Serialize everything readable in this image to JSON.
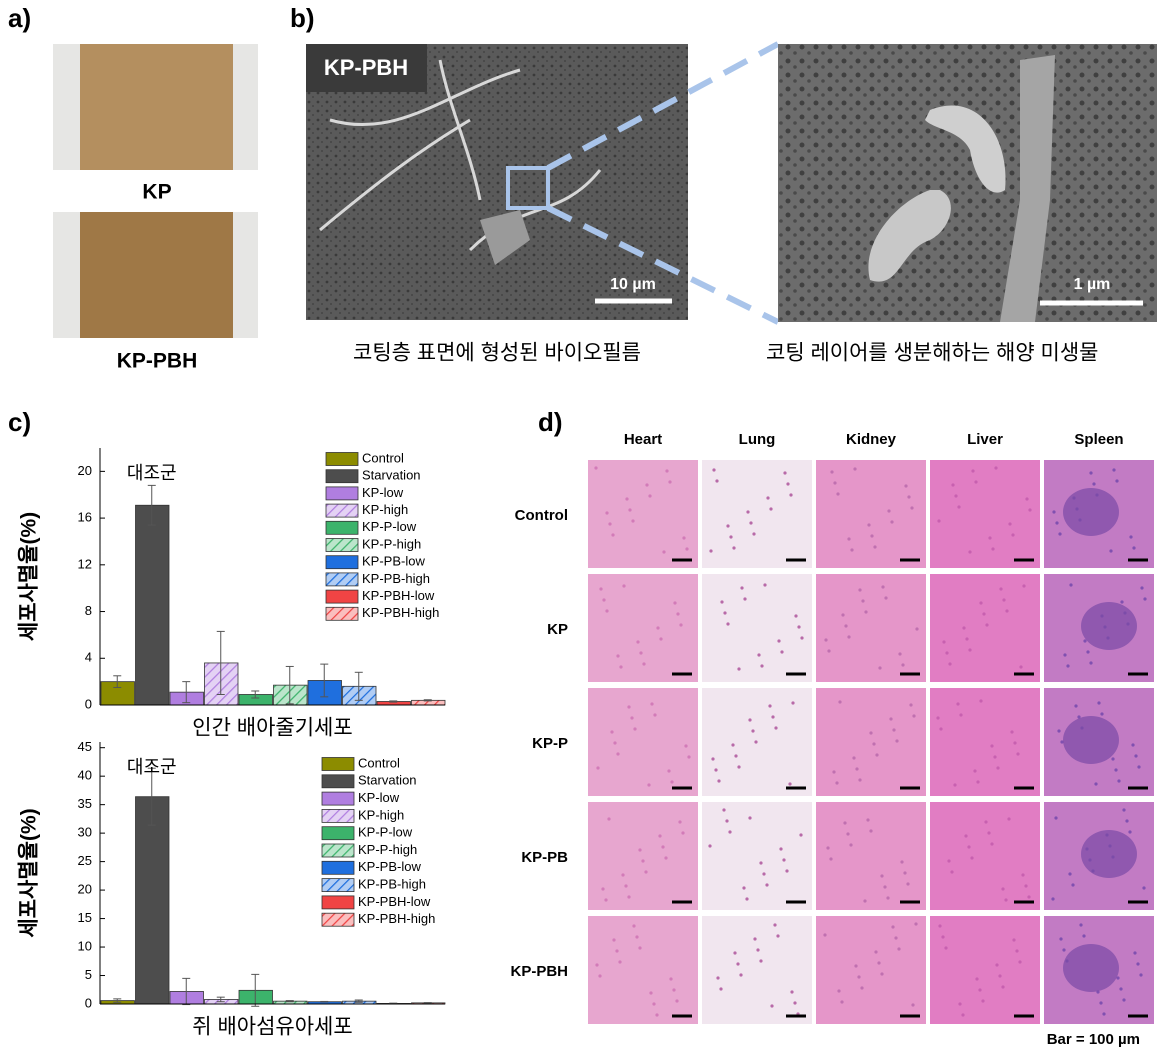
{
  "panel_labels": [
    "a)",
    "b)",
    "c)",
    "d)"
  ],
  "panel_a": {
    "samples": [
      "KP",
      "KP-PBH"
    ]
  },
  "panel_b": {
    "image_label": "KP-PBH",
    "scale_bars": [
      "10 µm",
      "1 µm"
    ],
    "captions": [
      "코팅층 표면에 형성된 바이오필름",
      "코팅 레이어를 생분해하는 해양 미생물"
    ]
  },
  "chart_data": [
    {
      "type": "bar",
      "annotation": "대조군",
      "x_label": "인간 배아줄기세포",
      "y_label": "세포사멸율(%)",
      "ylim": [
        0,
        22
      ],
      "yticks": [
        0,
        4,
        8,
        12,
        16,
        20
      ],
      "legend": "upper right",
      "series": [
        {
          "name": "Control",
          "color": "#8c8c00",
          "hatch": false,
          "values": [
            2.0
          ],
          "errors": [
            0.5
          ]
        },
        {
          "name": "Starvation",
          "color": "#4d4d4d",
          "hatch": false,
          "values": [
            17.1
          ],
          "errors": [
            1.7
          ]
        },
        {
          "name": "KP-low",
          "color": "#b07ee0",
          "hatch": false,
          "values": [
            1.1
          ],
          "errors": [
            0.9
          ]
        },
        {
          "name": "KP-high",
          "color": "#b07ee0",
          "hatch": true,
          "values": [
            3.6
          ],
          "errors": [
            2.7
          ]
        },
        {
          "name": "KP-P-low",
          "color": "#3cb36b",
          "hatch": false,
          "values": [
            0.9
          ],
          "errors": [
            0.3
          ]
        },
        {
          "name": "KP-P-high",
          "color": "#3cb36b",
          "hatch": true,
          "values": [
            1.7
          ],
          "errors": [
            1.6
          ]
        },
        {
          "name": "KP-PB-low",
          "color": "#1f6fde",
          "hatch": false,
          "values": [
            2.1
          ],
          "errors": [
            1.4
          ]
        },
        {
          "name": "KP-PB-high",
          "color": "#1f6fde",
          "hatch": true,
          "values": [
            1.6
          ],
          "errors": [
            1.2
          ]
        },
        {
          "name": "KP-PBH-low",
          "color": "#f04444",
          "hatch": false,
          "values": [
            0.3
          ],
          "errors": [
            0.05
          ]
        },
        {
          "name": "KP-PBH-high",
          "color": "#f04444",
          "hatch": true,
          "values": [
            0.4
          ],
          "errors": [
            0.05
          ]
        }
      ]
    },
    {
      "type": "bar",
      "annotation": "대조군",
      "x_label": "쥐 배아섬유아세포",
      "y_label": "세포사멸율(%)",
      "ylim": [
        0,
        46
      ],
      "yticks": [
        0,
        5,
        10,
        15,
        20,
        25,
        30,
        35,
        40,
        45
      ],
      "legend": "upper right",
      "series": [
        {
          "name": "Control",
          "color": "#8c8c00",
          "hatch": false,
          "values": [
            0.6
          ],
          "errors": [
            0.3
          ]
        },
        {
          "name": "Starvation",
          "color": "#4d4d4d",
          "hatch": false,
          "values": [
            36.4
          ],
          "errors": [
            5.0
          ]
        },
        {
          "name": "KP-low",
          "color": "#b07ee0",
          "hatch": false,
          "values": [
            2.2
          ],
          "errors": [
            2.3
          ]
        },
        {
          "name": "KP-high",
          "color": "#b07ee0",
          "hatch": true,
          "values": [
            0.8
          ],
          "errors": [
            0.4
          ]
        },
        {
          "name": "KP-P-low",
          "color": "#3cb36b",
          "hatch": false,
          "values": [
            2.4
          ],
          "errors": [
            2.8
          ]
        },
        {
          "name": "KP-P-high",
          "color": "#3cb36b",
          "hatch": true,
          "values": [
            0.5
          ],
          "errors": [
            0.1
          ]
        },
        {
          "name": "KP-PB-low",
          "color": "#1f6fde",
          "hatch": false,
          "values": [
            0.4
          ],
          "errors": [
            0.05
          ]
        },
        {
          "name": "KP-PB-high",
          "color": "#1f6fde",
          "hatch": true,
          "values": [
            0.5
          ],
          "errors": [
            0.2
          ]
        },
        {
          "name": "KP-PBH-low",
          "color": "#f04444",
          "hatch": false,
          "values": [
            0.1
          ],
          "errors": [
            0.05
          ]
        },
        {
          "name": "KP-PBH-high",
          "color": "#f04444",
          "hatch": true,
          "values": [
            0.2
          ],
          "errors": [
            0.05
          ]
        }
      ]
    }
  ],
  "panel_d": {
    "columns": [
      "Heart",
      "Lung",
      "Kidney",
      "Liver",
      "Spleen"
    ],
    "rows": [
      "Control",
      "KP",
      "KP-P",
      "KP-PB",
      "KP-PBH"
    ],
    "note": "Bar = 100 µm"
  }
}
